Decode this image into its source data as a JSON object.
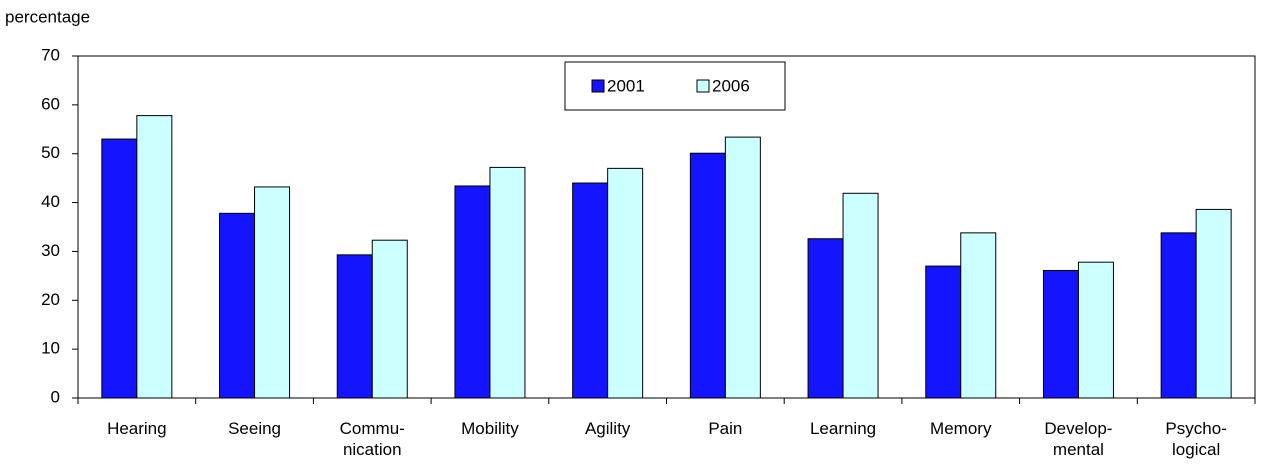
{
  "chart_data": {
    "type": "bar",
    "y_axis_label": "percentage",
    "categories": [
      "Hearing",
      "Seeing",
      "Commu-\nnication",
      "Mobility",
      "Agility",
      "Pain",
      "Learning",
      "Memory",
      "Develop-\nmental",
      "Psycho-\nlogical"
    ],
    "series": [
      {
        "name": "2001",
        "color": "#1414ff",
        "values": [
          53,
          37.8,
          29.3,
          43.4,
          44,
          50.1,
          32.6,
          27,
          26.1,
          33.8
        ]
      },
      {
        "name": "2006",
        "color": "#ccffff",
        "values": [
          57.8,
          43.2,
          32.3,
          47.2,
          47,
          53.4,
          41.9,
          33.8,
          27.8,
          38.6
        ]
      }
    ],
    "ylim": [
      0,
      70
    ],
    "yticks": [
      0,
      10,
      20,
      30,
      40,
      50,
      60,
      70
    ],
    "grid": false,
    "legend": "top-center"
  }
}
